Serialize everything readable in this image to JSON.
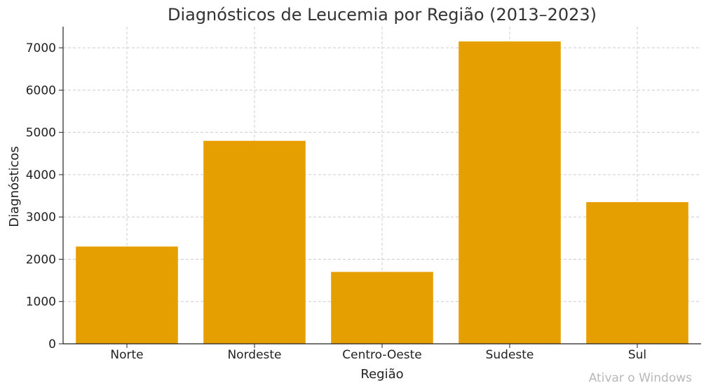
{
  "chart_data": {
    "type": "bar",
    "title": "Diagnósticos de Leucemia por Região (2013–2023)",
    "xlabel": "Região",
    "ylabel": "Diagnósticos",
    "categories": [
      "Norte",
      "Nordeste",
      "Centro-Oeste",
      "Sudeste",
      "Sul"
    ],
    "values": [
      2300,
      4800,
      1700,
      7150,
      3350
    ],
    "ylim": [
      0,
      7500
    ],
    "yticks": [
      0,
      1000,
      2000,
      3000,
      4000,
      5000,
      6000,
      7000
    ],
    "grid": true,
    "bar_color": "#E69F00"
  },
  "watermark": "Ativar o Windows"
}
